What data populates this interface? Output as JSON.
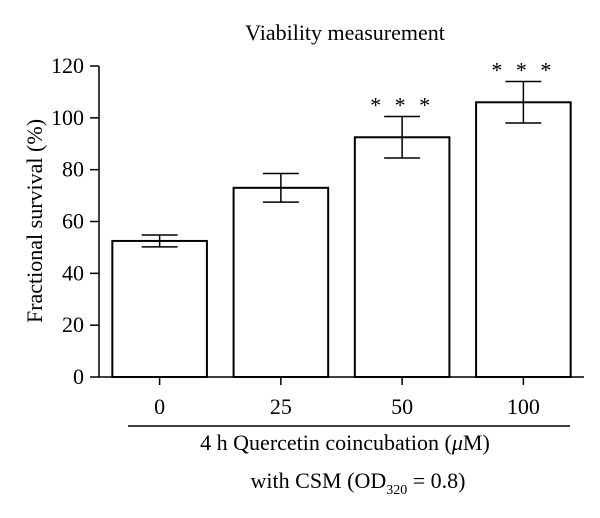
{
  "chart_data": {
    "type": "bar",
    "title": "Viability measurement",
    "ylabel": "Fractional survival (%)",
    "ylim": [
      0,
      120
    ],
    "yticks": [
      0,
      20,
      40,
      60,
      80,
      100,
      120
    ],
    "categories": [
      "0",
      "25",
      "50",
      "100"
    ],
    "values": [
      52.5,
      73,
      92.5,
      106
    ],
    "errors": [
      2.3,
      5.5,
      8,
      8
    ],
    "significance": [
      "",
      "",
      "* * *",
      "* * *"
    ],
    "xlabel_line1": {
      "pre": "4 h Quercetin coincubation (",
      "greek": "μ",
      "post": "M)"
    },
    "xlabel_line2": {
      "pre": "with CSM (OD",
      "sub": "320",
      "post": " = 0.8)"
    },
    "bar_fill": "#ffffff",
    "stroke_color": "#000000",
    "grid": false
  }
}
